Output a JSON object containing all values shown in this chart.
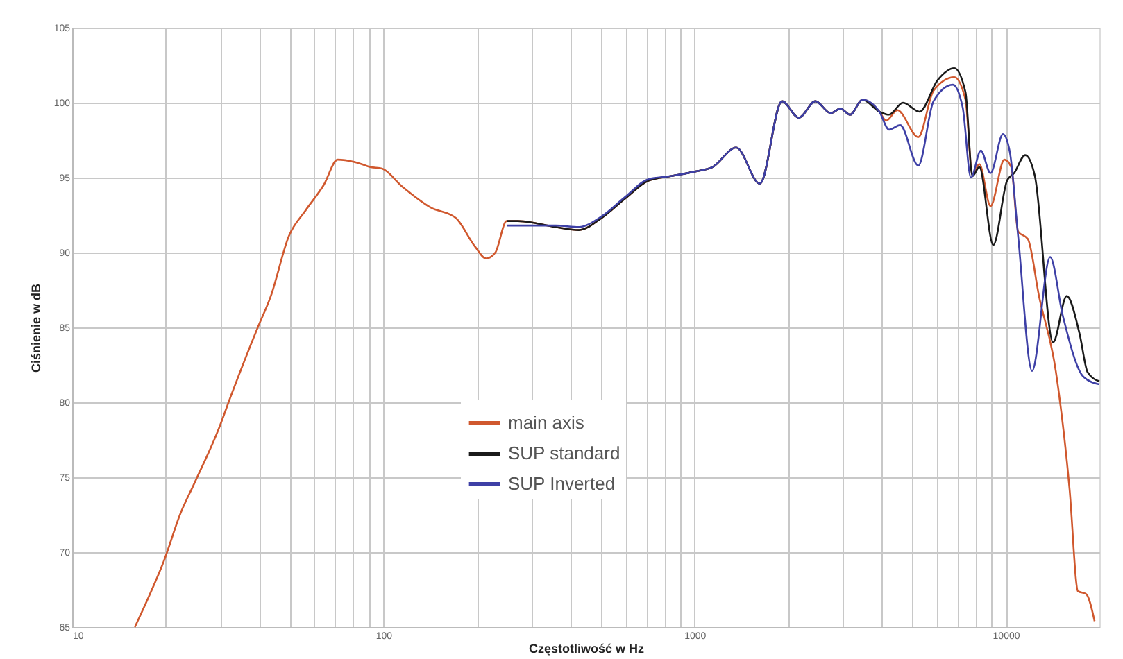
{
  "chart_data": {
    "type": "line",
    "xlabel": "Częstotliwość w Hz",
    "ylabel": "Ciśnienie w dB",
    "log": "x",
    "grid": true,
    "legend": "bottom",
    "line_style": "solid",
    "marker": "none",
    "xlim": [
      10,
      20000
    ],
    "ylim": [
      65,
      105
    ],
    "xticks": [
      10,
      {
        "value": 20,
        "label": null
      },
      {
        "value": 30,
        "label": null
      },
      {
        "value": 40,
        "label": null
      },
      {
        "value": 50,
        "label": null
      },
      {
        "value": 60,
        "label": null
      },
      {
        "value": 70,
        "label": null
      },
      {
        "value": 80,
        "label": null
      },
      {
        "value": 90,
        "label": null
      },
      100,
      {
        "value": 200,
        "label": null
      },
      {
        "value": 300,
        "label": null
      },
      {
        "value": 400,
        "label": null
      },
      {
        "value": 500,
        "label": null
      },
      {
        "value": 600,
        "label": null
      },
      {
        "value": 700,
        "label": null
      },
      {
        "value": 800,
        "label": null
      },
      {
        "value": 900,
        "label": null
      },
      1000,
      {
        "value": 2000,
        "label": null
      },
      {
        "value": 3000,
        "label": null
      },
      {
        "value": 4000,
        "label": null
      },
      {
        "value": 5000,
        "label": null
      },
      {
        "value": 6000,
        "label": null
      },
      {
        "value": 7000,
        "label": null
      },
      {
        "value": 8000,
        "label": null
      },
      {
        "value": 9000,
        "label": null
      },
      10000
    ],
    "yticks": [
      65,
      70,
      75,
      80,
      85,
      90,
      95,
      100,
      105
    ],
    "series": [
      {
        "name": "main axis",
        "color": "#d0582e",
        "x": [
          15.9,
          17.6,
          19.7,
          22.3,
          24.7,
          29.4,
          32.6,
          39.3,
          43.5,
          49.7,
          56.2,
          64.3,
          71.3,
          82.3,
          91.2,
          99,
          115,
          142,
          171,
          197,
          214,
          229,
          249,
          271,
          358,
          425,
          502,
          598,
          712,
          840,
          1000,
          1143,
          1361,
          1622,
          1910,
          2163,
          2445,
          2738,
          2944,
          3162,
          3467,
          3926,
          4130,
          4487,
          5236,
          5861,
          6834,
          7425,
          7816,
          8227,
          8937,
          9902,
          10420,
          10960,
          11780,
          12790,
          14480,
          16040,
          17060,
          18150,
          19300
        ],
        "values": [
          65,
          67.0,
          69.4,
          72.6,
          74.6,
          78.1,
          80.6,
          84.9,
          87.1,
          91.1,
          92.8,
          94.5,
          96.2,
          96.0,
          95.7,
          95.6,
          94.4,
          93.0,
          92.3,
          90.4,
          89.6,
          90.0,
          92.1,
          92.1,
          91.7,
          91.5,
          92.3,
          93.6,
          94.8,
          95.1,
          95.4,
          95.7,
          97.0,
          94.6,
          100.1,
          99.0,
          100.1,
          99.3,
          99.6,
          99.2,
          100.2,
          99.4,
          98.8,
          99.5,
          97.7,
          100.8,
          101.7,
          100.2,
          95.2,
          95.9,
          93.1,
          96.2,
          95.7,
          91.4,
          90.9,
          87.1,
          82.1,
          74.2,
          67.4,
          67.2,
          65.4
        ]
      },
      {
        "name": "SUP standard",
        "color": "#1a1a1a",
        "x": [
          249,
          271,
          358,
          425,
          502,
          598,
          712,
          840,
          1000,
          1143,
          1361,
          1622,
          1910,
          2163,
          2445,
          2738,
          2944,
          3162,
          3467,
          3926,
          4217,
          4677,
          5287,
          6040,
          6834,
          7425,
          7816,
          8227,
          9120,
          10100,
          10640,
          11550,
          12410,
          14190,
          15710,
          17260,
          18340,
          20000
        ],
        "values": [
          92.1,
          92.1,
          91.7,
          91.5,
          92.3,
          93.6,
          94.8,
          95.1,
          95.4,
          95.7,
          97.0,
          94.6,
          100.1,
          99.0,
          100.1,
          99.3,
          99.6,
          99.2,
          100.2,
          99.4,
          99.2,
          100.0,
          99.4,
          101.5,
          102.3,
          100.7,
          95.1,
          95.7,
          90.5,
          94.8,
          95.3,
          96.5,
          95.1,
          84.0,
          87.1,
          84.6,
          82.0,
          81.4
        ]
      },
      {
        "name": "SUP Inverted",
        "color": "#3e40a6",
        "x": [
          249,
          271,
          358,
          425,
          502,
          598,
          712,
          840,
          1000,
          1143,
          1361,
          1622,
          1910,
          2163,
          2445,
          2738,
          2944,
          3162,
          3467,
          3926,
          4217,
          4580,
          5236,
          5861,
          6764,
          7270,
          7730,
          8318,
          8937,
          9795,
          10310,
          10960,
          12150,
          13890,
          15250,
          17780,
          20000
        ],
        "values": [
          91.8,
          91.8,
          91.8,
          91.7,
          92.4,
          93.7,
          94.9,
          95.1,
          95.4,
          95.7,
          97.0,
          94.6,
          100.1,
          99.0,
          100.1,
          99.3,
          99.6,
          99.2,
          100.2,
          99.4,
          98.2,
          98.5,
          95.8,
          100.1,
          101.2,
          99.7,
          95.0,
          96.8,
          95.3,
          97.9,
          96.7,
          91.1,
          82.1,
          89.7,
          85.8,
          81.7,
          81.2
        ]
      }
    ]
  }
}
